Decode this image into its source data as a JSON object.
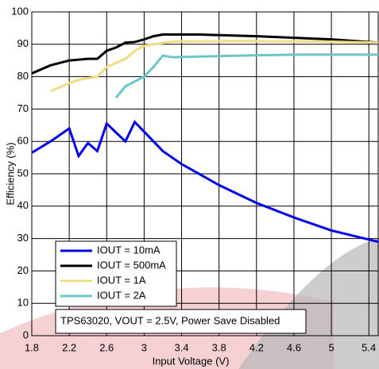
{
  "chart_data": {
    "type": "line",
    "x_label": "Input Voltage (V)",
    "y_label": "Efficiency (%)",
    "annotation": "TPS63020, VOUT = 2.5V, Power Save Disabled",
    "xlim": [
      1.8,
      5.5
    ],
    "xticks": [
      1.8,
      2.2,
      2.6,
      3,
      3.4,
      3.8,
      4.2,
      4.6,
      5,
      5.4
    ],
    "ylim": [
      0,
      100
    ],
    "yticks": [
      0,
      10,
      20,
      30,
      40,
      50,
      60,
      70,
      80,
      90,
      100
    ],
    "grid": true,
    "legend": "lower left",
    "series": [
      {
        "name": "IOUT = 10mA",
        "color": "#0000e6",
        "x": [
          1.8,
          2.0,
          2.2,
          2.3,
          2.4,
          2.5,
          2.6,
          2.8,
          2.9,
          3.0,
          3.2,
          3.4,
          3.8,
          4.2,
          4.6,
          5.0,
          5.5
        ],
        "values": [
          56.5,
          60,
          64,
          55.5,
          59.5,
          57,
          65.5,
          60,
          66,
          63,
          57,
          53,
          46.5,
          41,
          36.5,
          32.5,
          29
        ]
      },
      {
        "name": "IOUT = 500mA",
        "color": "#000000",
        "x": [
          1.8,
          2.0,
          2.2,
          2.4,
          2.5,
          2.6,
          2.7,
          2.8,
          2.9,
          3.0,
          3.1,
          3.2,
          3.6,
          4.2,
          5.0,
          5.5
        ],
        "values": [
          81,
          83.5,
          85,
          85.5,
          85.5,
          88,
          89,
          90.5,
          90.7,
          91.5,
          92.5,
          93,
          93,
          92.5,
          91.5,
          90.5
        ]
      },
      {
        "name": "IOUT = 1A",
        "color": "#f0dc82",
        "x": [
          2.0,
          2.2,
          2.3,
          2.5,
          2.6,
          2.8,
          2.9,
          3.0,
          3.1,
          3.3,
          4.0,
          5.0,
          5.5
        ],
        "values": [
          75.5,
          78,
          79,
          80,
          83,
          85.5,
          88,
          89.5,
          90,
          90.8,
          91,
          90.8,
          90.5
        ]
      },
      {
        "name": "IOUT = 2A",
        "color": "#6cc6c6",
        "x": [
          2.7,
          2.8,
          2.9,
          3.0,
          3.1,
          3.2,
          3.3,
          4.0,
          4.6,
          5.5
        ],
        "values": [
          73.5,
          77,
          78.5,
          80,
          83,
          86.5,
          86,
          86.5,
          86.8,
          86.8
        ]
      }
    ]
  }
}
